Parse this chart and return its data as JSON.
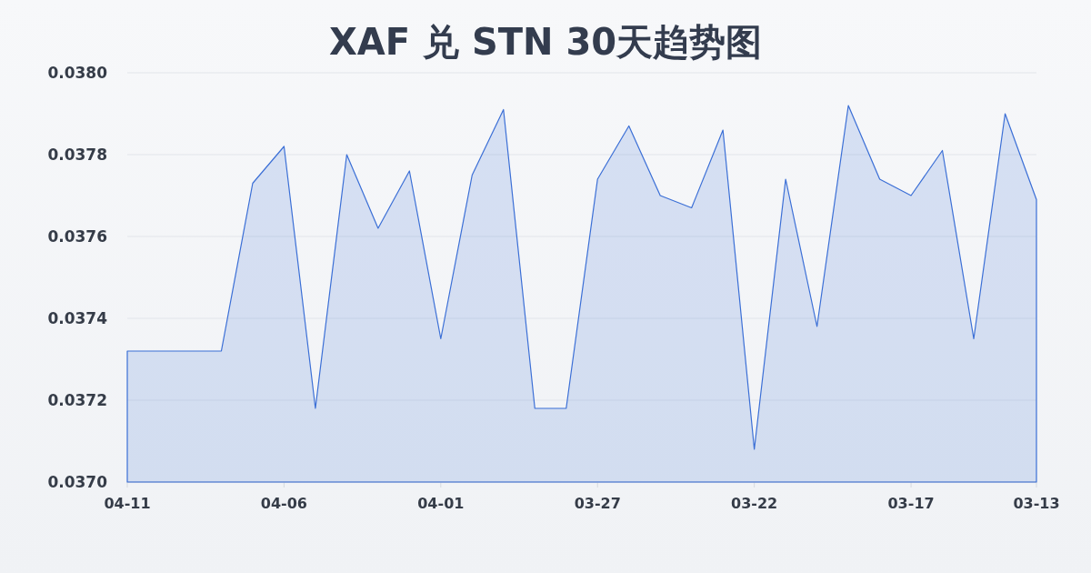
{
  "chart_data": {
    "type": "area",
    "title": "XAF 兑 STN 30天趋势图",
    "categories": [
      "04-11",
      null,
      null,
      null,
      null,
      "04-06",
      null,
      null,
      null,
      null,
      "04-01",
      null,
      null,
      null,
      null,
      "03-27",
      null,
      null,
      null,
      null,
      "03-22",
      null,
      null,
      null,
      null,
      "03-17",
      null,
      null,
      null,
      "03-13"
    ],
    "series": [
      {
        "color": "#3b6fd6",
        "values": [
          0.03732,
          0.03732,
          0.03732,
          0.03732,
          0.03773,
          0.03782,
          0.03718,
          0.0378,
          0.03762,
          0.03776,
          0.03735,
          0.03775,
          0.03791,
          0.03718,
          0.03718,
          0.03774,
          0.03787,
          0.0377,
          0.03767,
          0.03786,
          0.03708,
          0.03774,
          0.03738,
          0.03792,
          0.03774,
          0.0377,
          0.03781,
          0.03735,
          0.0379,
          0.03769
        ]
      }
    ],
    "ylim": [
      0.037,
      0.038
    ],
    "yticks": [
      {
        "value": 0.037,
        "label": "0.0370"
      },
      {
        "value": 0.0372,
        "label": "0.0372"
      },
      {
        "value": 0.0374,
        "label": "0.0374"
      },
      {
        "value": 0.0376,
        "label": "0.0376"
      },
      {
        "value": 0.0378,
        "label": "0.0378"
      },
      {
        "value": 0.038,
        "label": "0.0380"
      }
    ],
    "grid": "y"
  }
}
